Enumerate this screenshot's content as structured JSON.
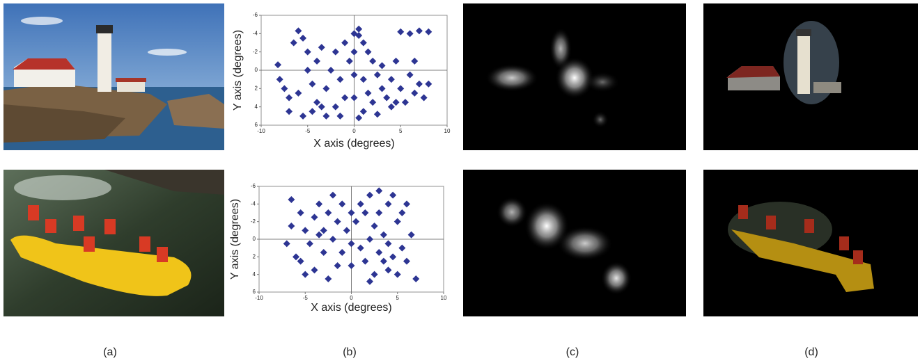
{
  "panels": {
    "labels": [
      "(a)",
      "(b)",
      "(c)",
      "(d)"
    ]
  },
  "chart_data": [
    {
      "type": "scatter",
      "xlabel": "X axis (degrees)",
      "ylabel": "Y axis (degrees)",
      "xlim": [
        -10,
        10
      ],
      "ylim": [
        6,
        -6
      ],
      "xticks": [
        -10,
        -5,
        0,
        5,
        10
      ],
      "yticks": [
        -6,
        -4,
        -2,
        0,
        2,
        4,
        6
      ],
      "series": [
        {
          "color": "#2d3593",
          "x": [
            -8.2,
            -8,
            -7.5,
            -7,
            -6.5,
            -6,
            -5.5,
            -5,
            -5,
            -4.5,
            -4.5,
            -4,
            -4,
            -3.5,
            -3,
            -3,
            -2.5,
            -2,
            -2,
            -1.5,
            -1,
            -1,
            -0.5,
            0,
            0,
            0,
            0,
            0.5,
            0.5,
            1,
            1,
            1,
            1.5,
            1.5,
            2,
            2,
            2.5,
            3,
            3,
            3.5,
            4,
            4,
            4.5,
            5,
            5,
            5.5,
            6,
            6,
            6.5,
            7,
            7,
            7.5,
            8,
            8,
            -6,
            -3.5,
            -1.5,
            0.5,
            2.5,
            4.5,
            -7,
            -5.5,
            6.5
          ],
          "values": [
            -0.6,
            1,
            2,
            3,
            -3,
            -4.3,
            -3.5,
            -2,
            0,
            1.5,
            4.5,
            3.5,
            -1,
            -2.5,
            2,
            5,
            0,
            -2,
            4,
            1,
            -3,
            3,
            -1,
            -4,
            -2,
            0.5,
            3,
            -3.8,
            -4.5,
            -3,
            1,
            4.5,
            -2,
            2.5,
            -1,
            3.5,
            0.5,
            2,
            -0.5,
            3,
            1,
            4,
            -1,
            2,
            -4.2,
            3.5,
            0.5,
            -4,
            2.5,
            1.5,
            -4.3,
            3,
            1.5,
            -4.2,
            2.5,
            4,
            5,
            5.2,
            4.8,
            3.5,
            4.5,
            5,
            -1
          ]
        }
      ]
    },
    {
      "type": "scatter",
      "xlabel": "X axis (degrees)",
      "ylabel": "Y axis (degrees)",
      "xlim": [
        -10,
        10
      ],
      "ylim": [
        6,
        -6
      ],
      "xticks": [
        -10,
        -5,
        0,
        5,
        10
      ],
      "yticks": [
        -6,
        -4,
        -2,
        0,
        2,
        4,
        6
      ],
      "series": [
        {
          "color": "#2d3593",
          "x": [
            -7,
            -6.5,
            -6.5,
            -6,
            -5.5,
            -5,
            -5,
            -4.5,
            -4,
            -4,
            -3.5,
            -3,
            -3,
            -2.5,
            -2.5,
            -2,
            -2,
            -1.5,
            -1,
            -1,
            -0.5,
            0,
            0,
            0,
            0.5,
            1,
            1,
            1.5,
            2,
            2,
            2.5,
            2.5,
            3,
            3,
            3,
            3.5,
            3.5,
            4,
            4,
            4,
            4.5,
            4.5,
            5,
            5,
            5.5,
            5.5,
            6,
            6,
            6.5,
            7,
            -5.5,
            -1.5,
            1.5,
            2,
            -3.5
          ],
          "values": [
            0.5,
            -1.5,
            -4.5,
            2,
            -3,
            -1,
            4,
            0.5,
            -2.5,
            3.5,
            -4,
            -1,
            1.5,
            -3,
            4.5,
            0,
            -5,
            -2,
            1.5,
            -4,
            -1,
            -3,
            0.5,
            3,
            -2,
            -4,
            1,
            -3,
            0,
            -5,
            -1.5,
            4,
            -5.5,
            1.5,
            -3,
            -0.5,
            2.5,
            -4,
            3.5,
            0.5,
            -5,
            2,
            -2,
            4,
            -3,
            1,
            -4,
            2.5,
            -0.5,
            4.5,
            2.5,
            3,
            2.5,
            4.8,
            -0.5
          ]
        }
      ]
    }
  ]
}
